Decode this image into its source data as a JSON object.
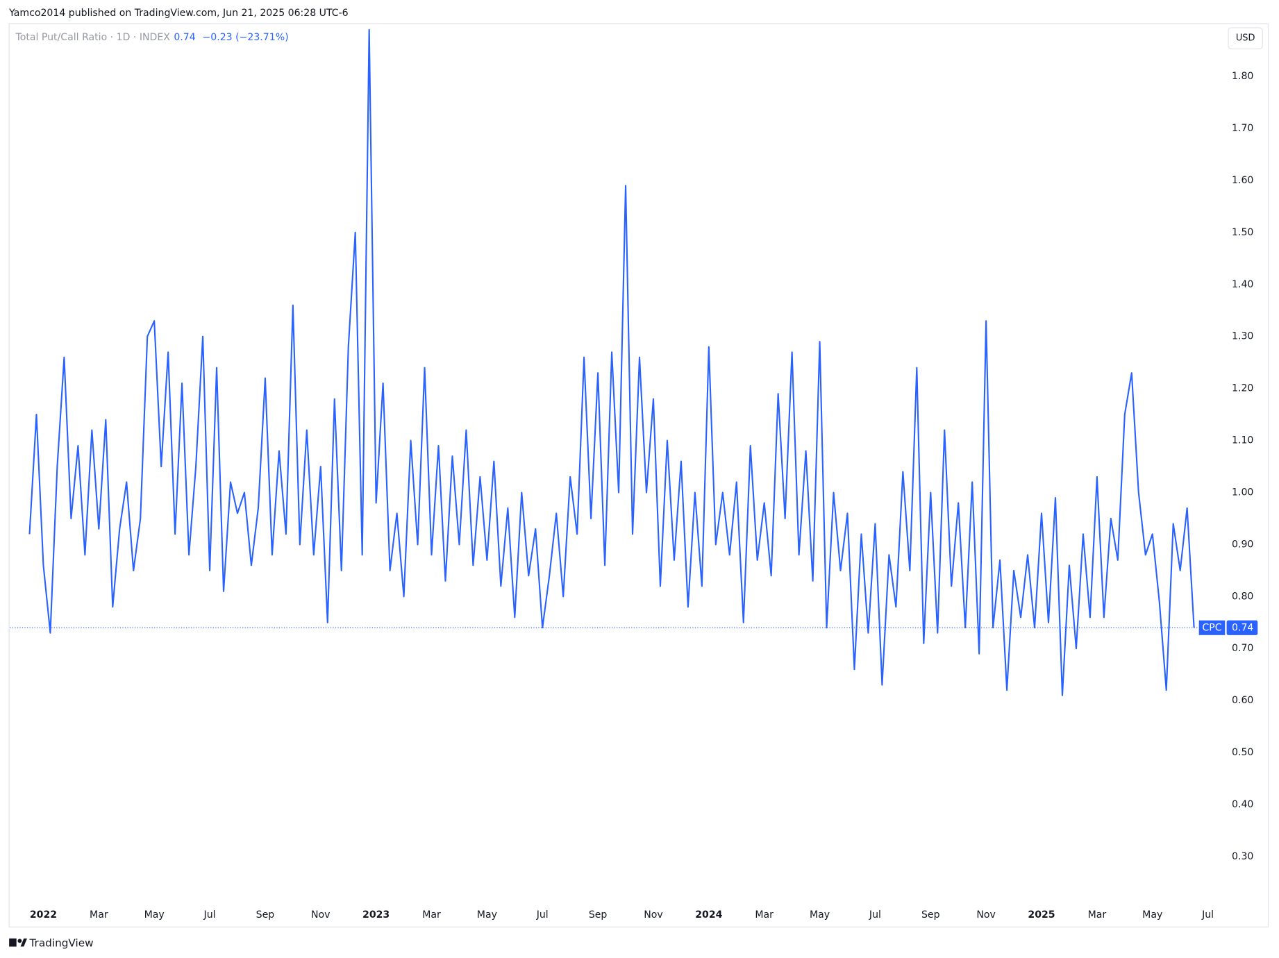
{
  "header": {
    "publisher": "Yamco2014 published on TradingView.com, Jun 21, 2025 06:28 UTC-6",
    "brand": "TradingView"
  },
  "chart_data": {
    "type": "line",
    "title": "Total Put/Call Ratio · 1D · INDEX",
    "last_value": 0.74,
    "change": "−0.23 (−23.71%)",
    "currency": "USD",
    "symbol": "CPC",
    "categories": [
      null,
      null,
      "2022",
      null,
      null,
      null,
      null,
      null,
      null,
      null,
      "Mar",
      null,
      null,
      null,
      null,
      null,
      null,
      null,
      "May",
      null,
      null,
      null,
      null,
      null,
      null,
      null,
      "Jul",
      null,
      null,
      null,
      null,
      null,
      null,
      null,
      "Sep",
      null,
      null,
      null,
      null,
      null,
      null,
      null,
      "Nov",
      null,
      null,
      null,
      null,
      null,
      null,
      null,
      "2023",
      null,
      null,
      null,
      null,
      null,
      null,
      null,
      "Mar",
      null,
      null,
      null,
      null,
      null,
      null,
      null,
      "May",
      null,
      null,
      null,
      null,
      null,
      null,
      null,
      "Jul",
      null,
      null,
      null,
      null,
      null,
      null,
      null,
      "Sep",
      null,
      null,
      null,
      null,
      null,
      null,
      null,
      "Nov",
      null,
      null,
      null,
      null,
      null,
      null,
      null,
      "2024",
      null,
      null,
      null,
      null,
      null,
      null,
      null,
      "Mar",
      null,
      null,
      null,
      null,
      null,
      null,
      null,
      "May",
      null,
      null,
      null,
      null,
      null,
      null,
      null,
      "Jul",
      null,
      null,
      null,
      null,
      null,
      null,
      null,
      "Sep",
      null,
      null,
      null,
      null,
      null,
      null,
      null,
      "Nov",
      null,
      null,
      null,
      null,
      null,
      null,
      null,
      "2025",
      null,
      null,
      null,
      null,
      null,
      null,
      null,
      "Mar",
      null,
      null,
      null,
      null,
      null,
      null,
      null,
      "May",
      null,
      null,
      null,
      null,
      null,
      null,
      null,
      "Jul"
    ],
    "series": [
      {
        "name": "CPC",
        "color": "#2962ff",
        "values": [
          0.92,
          1.15,
          0.86,
          0.73,
          1.05,
          1.26,
          0.95,
          1.09,
          0.88,
          1.12,
          0.93,
          1.14,
          0.78,
          0.93,
          1.02,
          0.85,
          0.95,
          1.3,
          1.33,
          1.05,
          1.27,
          0.92,
          1.21,
          0.88,
          1.05,
          1.3,
          0.85,
          1.24,
          0.81,
          1.02,
          0.96,
          1.0,
          0.86,
          0.97,
          1.22,
          0.88,
          1.08,
          0.92,
          1.36,
          0.9,
          1.12,
          0.88,
          1.05,
          0.75,
          1.18,
          0.85,
          1.28,
          1.5,
          0.88,
          1.89,
          0.98,
          1.21,
          0.85,
          0.96,
          0.8,
          1.1,
          0.9,
          1.24,
          0.88,
          1.09,
          0.83,
          1.07,
          0.9,
          1.12,
          0.86,
          1.03,
          0.87,
          1.06,
          0.82,
          0.97,
          0.76,
          1.0,
          0.84,
          0.93,
          0.74,
          0.84,
          0.96,
          0.8,
          1.03,
          0.92,
          1.26,
          0.95,
          1.23,
          0.86,
          1.27,
          1.0,
          1.59,
          0.92,
          1.26,
          1.0,
          1.18,
          0.82,
          1.1,
          0.87,
          1.06,
          0.78,
          1.0,
          0.82,
          1.28,
          0.9,
          1.0,
          0.88,
          1.02,
          0.75,
          1.09,
          0.87,
          0.98,
          0.84,
          1.19,
          0.95,
          1.27,
          0.88,
          1.08,
          0.83,
          1.29,
          0.74,
          1.0,
          0.85,
          0.96,
          0.66,
          0.92,
          0.73,
          0.94,
          0.63,
          0.88,
          0.78,
          1.04,
          0.85,
          1.24,
          0.71,
          1.0,
          0.73,
          1.12,
          0.82,
          0.98,
          0.74,
          1.02,
          0.69,
          1.33,
          0.74,
          0.87,
          0.62,
          0.85,
          0.76,
          0.88,
          0.74,
          0.96,
          0.75,
          0.99,
          0.61,
          0.86,
          0.7,
          0.92,
          0.76,
          1.03,
          0.76,
          0.95,
          0.87,
          1.15,
          1.23,
          1.0,
          0.88,
          0.92,
          0.79,
          0.62,
          0.94,
          0.85,
          0.97,
          0.74,
          null,
          null
        ]
      }
    ],
    "ylim": [
      0.21,
      1.9
    ],
    "yticks": [
      {
        "value": 0.3,
        "label": "0.30"
      },
      {
        "value": 0.4,
        "label": "0.40"
      },
      {
        "value": 0.5,
        "label": "0.50"
      },
      {
        "value": 0.6,
        "label": "0.60"
      },
      {
        "value": 0.7,
        "label": "0.70"
      },
      {
        "value": 0.8,
        "label": "0.80"
      },
      {
        "value": 0.9,
        "label": "0.90"
      },
      {
        "value": 1.0,
        "label": "1.00"
      },
      {
        "value": 1.1,
        "label": "1.10"
      },
      {
        "value": 1.2,
        "label": "1.20"
      },
      {
        "value": 1.3,
        "label": "1.30"
      },
      {
        "value": 1.4,
        "label": "1.40"
      },
      {
        "value": 1.5,
        "label": "1.50"
      },
      {
        "value": 1.6,
        "label": "1.60"
      },
      {
        "value": 1.7,
        "label": "1.70"
      },
      {
        "value": 1.8,
        "label": "1.80"
      }
    ]
  }
}
